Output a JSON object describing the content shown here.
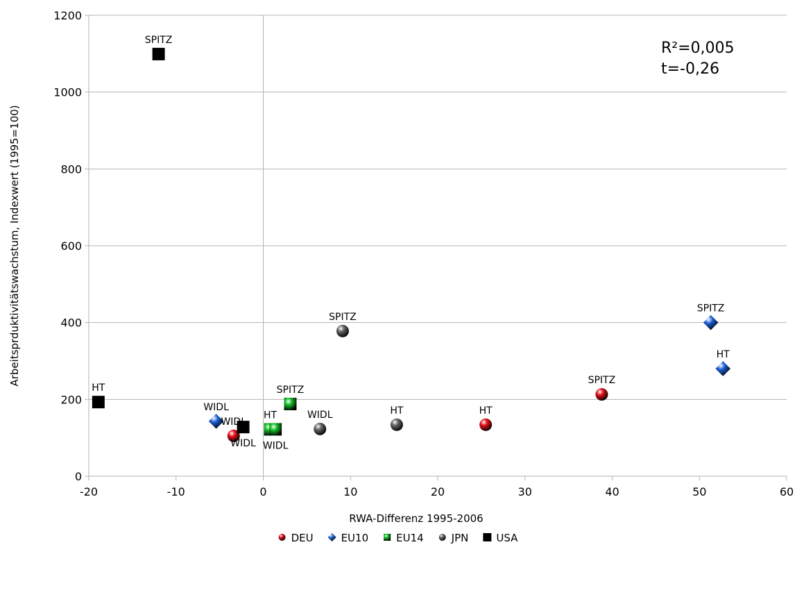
{
  "chart_data": {
    "type": "scatter",
    "x_label": "RWA-Differenz 1995-2006",
    "y_label": "Arbeitsprduktivitätswachstum, Indexwert (1995=100)",
    "annotations": [
      "R²=0,005",
      "t=-0,26"
    ],
    "xlim": [
      -20,
      60
    ],
    "xticks": [
      -20,
      -10,
      0,
      10,
      20,
      30,
      40,
      50,
      60
    ],
    "ylim": [
      0,
      1200
    ],
    "yticks": [
      0,
      200,
      400,
      600,
      800,
      1000,
      1200
    ],
    "grid": true,
    "series": [
      {
        "name": "DEU",
        "color": "#e8101a",
        "marker": "circle",
        "x": [
          -3.4,
          25.5,
          38.8
        ],
        "values": [
          105,
          134,
          213
        ],
        "labels": [
          "WIDL",
          "HT",
          "SPITZ"
        ]
      },
      {
        "name": "EU10",
        "color": "#1c5fd4",
        "marker": "diamond",
        "x": [
          -5.4,
          51.3,
          52.7
        ],
        "values": [
          143,
          400,
          280
        ],
        "labels": [
          "WIDL",
          "SPITZ",
          "HT"
        ]
      },
      {
        "name": "EU14",
        "color": "#16c22a",
        "marker": "square",
        "x": [
          0.8,
          1.4,
          3.1
        ],
        "values": [
          122,
          122,
          188
        ],
        "labels": [
          "HT",
          "WIDL",
          "SPITZ"
        ]
      },
      {
        "name": "JPN",
        "color": "#666666",
        "marker": "circle",
        "x": [
          9.1,
          6.5,
          15.3
        ],
        "values": [
          378,
          123,
          134
        ],
        "labels": [
          "SPITZ",
          "WIDL",
          "HT"
        ]
      },
      {
        "name": "USA",
        "color": "#000000",
        "marker": "flat-square",
        "x": [
          -12.0,
          -18.9,
          -2.3
        ],
        "values": [
          1099,
          193,
          128
        ],
        "labels": [
          "SPITZ",
          "HT",
          "WIDL"
        ]
      }
    ]
  }
}
